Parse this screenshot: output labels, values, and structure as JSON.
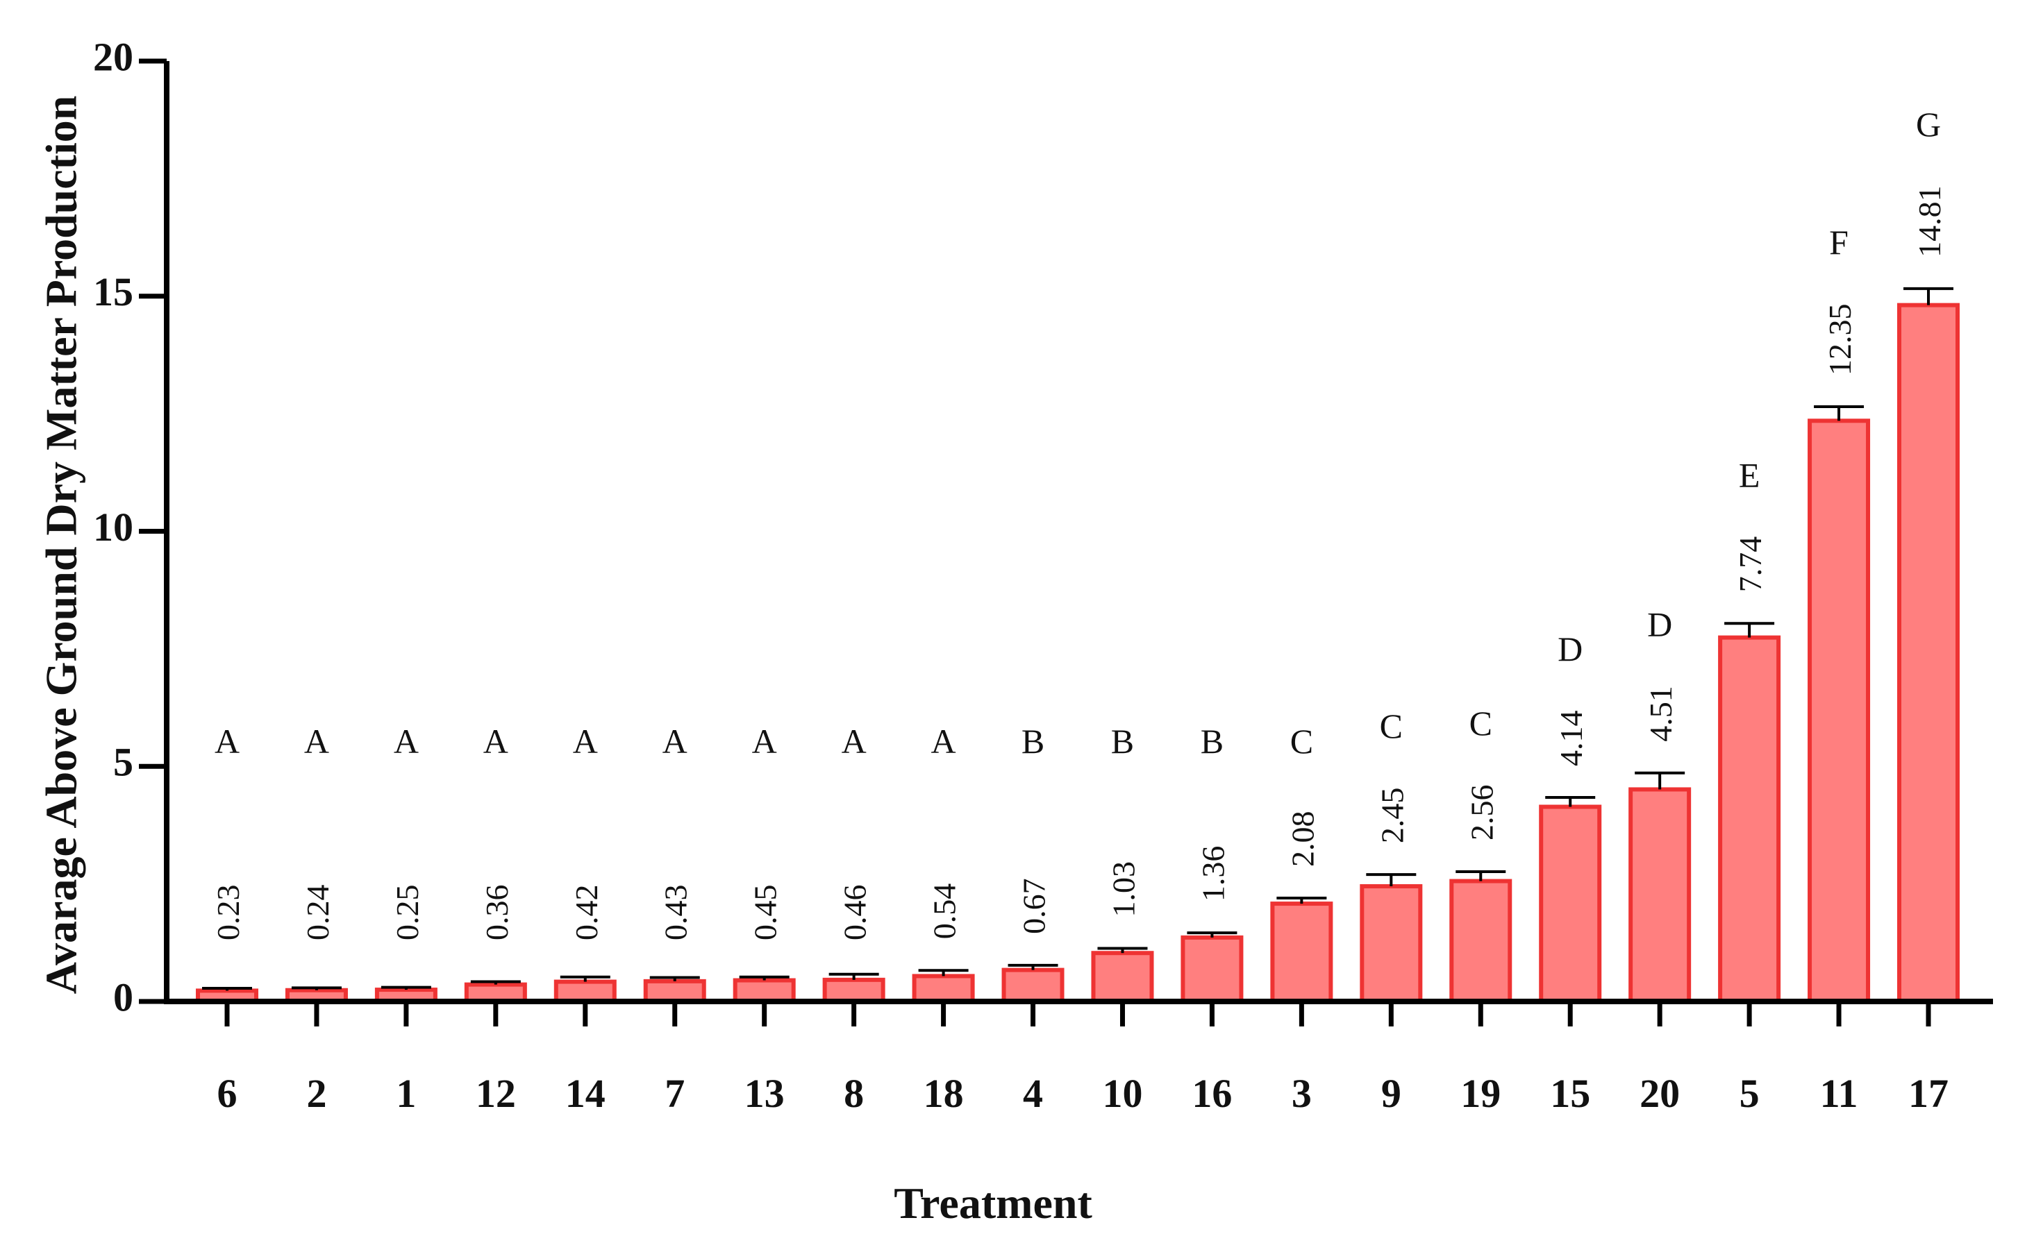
{
  "chart_data": {
    "type": "bar",
    "title": "",
    "xlabel": "Treatment",
    "ylabel": "Avarage Above Ground Dry Matter Production",
    "ylim": [
      0,
      20
    ],
    "yticks": [
      0,
      5,
      10,
      15,
      20
    ],
    "grid": false,
    "legend": "none",
    "categories": [
      "6",
      "2",
      "1",
      "12",
      "14",
      "7",
      "13",
      "8",
      "18",
      "4",
      "10",
      "16",
      "3",
      "9",
      "19",
      "15",
      "20",
      "5",
      "11",
      "17"
    ],
    "values": [
      0.23,
      0.24,
      0.25,
      0.36,
      0.42,
      0.43,
      0.45,
      0.46,
      0.54,
      0.67,
      1.03,
      1.36,
      2.08,
      2.45,
      2.56,
      4.14,
      4.51,
      7.74,
      12.35,
      14.81
    ],
    "value_labels": [
      "0.23",
      "0.24",
      "0.25",
      "0.36",
      "0.42",
      "0.43",
      "0.45",
      "0.46",
      "0.54",
      "0.67",
      "1.03",
      "1.36",
      "2.08",
      "2.45",
      "2.56",
      "4.14",
      "4.51",
      "7.74",
      "12.35",
      "14.81"
    ],
    "errors": [
      0.05,
      0.05,
      0.05,
      0.06,
      0.1,
      0.08,
      0.07,
      0.12,
      0.12,
      0.1,
      0.1,
      0.1,
      0.12,
      0.25,
      0.2,
      0.2,
      0.35,
      0.3,
      0.3,
      0.35
    ],
    "group_letters": [
      "A",
      "A",
      "A",
      "A",
      "A",
      "A",
      "A",
      "A",
      "A",
      "B",
      "B",
      "B",
      "C",
      "C",
      "C",
      "D",
      "D",
      "E",
      "F",
      "G"
    ],
    "colors": {
      "bar_fill": "#ff7f7f",
      "bar_stroke": "#ee3333",
      "axis": "#000000",
      "text": "#111111"
    }
  }
}
